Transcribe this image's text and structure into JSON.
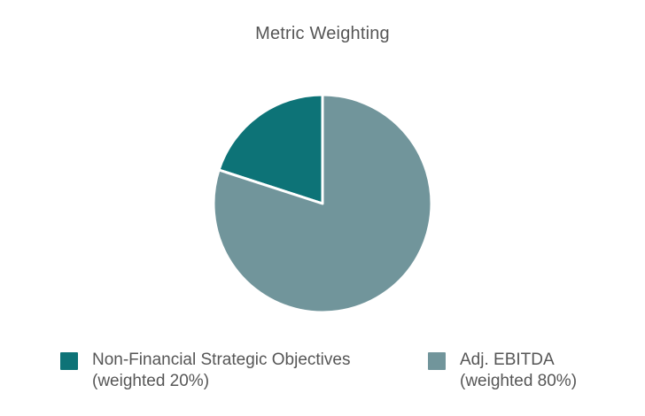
{
  "chart_data": {
    "type": "pie",
    "title": "Metric Weighting",
    "series": [
      {
        "name": "Non-Financial Strategic Objectives",
        "sublabel": "(weighted 20%)",
        "value": 20,
        "color": "#0d7377"
      },
      {
        "name": "Adj. EBITDA",
        "sublabel": "(weighted 80%)",
        "value": 80,
        "color": "#71959b"
      }
    ],
    "start_angle": "12-oclock",
    "direction": "counterclockwise",
    "slice_border_color": "#ffffff",
    "legend_position": "bottom",
    "background_color": "#ffffff",
    "title_color": "#565656",
    "legend_text_color": "#565656"
  }
}
